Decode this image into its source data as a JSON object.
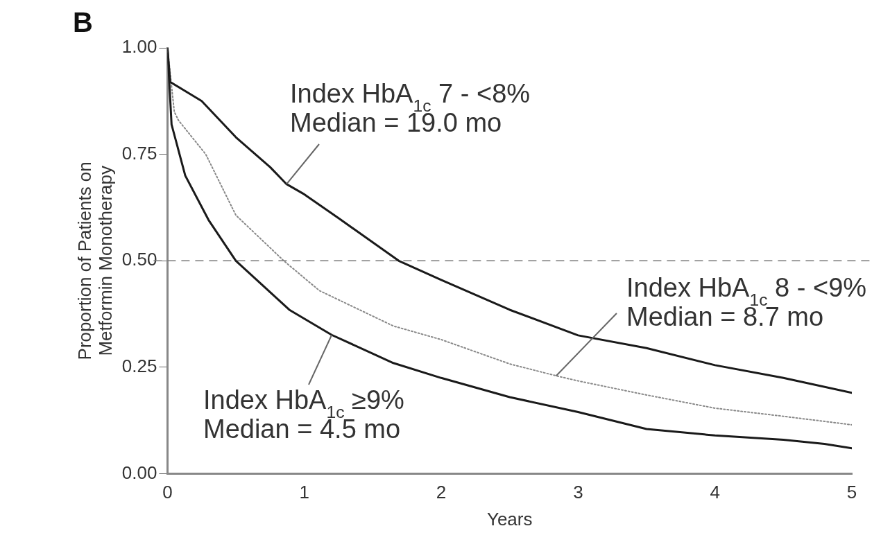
{
  "chart_data": {
    "type": "line",
    "title": "B",
    "xlabel": "Years",
    "ylabel": "Proportion of Patients on\nMetformin Monotherapy",
    "xlim": [
      0,
      5
    ],
    "xticks": [
      0,
      1,
      2,
      3,
      4,
      5
    ],
    "ylim": [
      0,
      1
    ],
    "yticks": [
      {
        "value": 0,
        "label": "0.00"
      },
      {
        "value": 0.25,
        "label": "0.25"
      },
      {
        "value": 0.5,
        "label": "0.50"
      },
      {
        "value": 0.75,
        "label": "0.75"
      },
      {
        "value": 1,
        "label": "1.00"
      }
    ],
    "grid": false,
    "legend": false,
    "marker": "none",
    "series": [
      {
        "color": "#1a1a1a",
        "line_style": "solid",
        "x": [
          0,
          0.02,
          0.25,
          0.5,
          0.75,
          0.87,
          1,
          1.25,
          1.69,
          2,
          2.5,
          3,
          3.5,
          4,
          4.5,
          5
        ],
        "values": [
          1,
          0.92,
          0.875,
          0.79,
          0.72,
          0.68,
          0.656,
          0.6,
          0.5,
          0.455,
          0.385,
          0.325,
          0.295,
          0.255,
          0.225,
          0.19
        ]
      },
      {
        "color": "#888888",
        "line_style": "dotted",
        "x": [
          0,
          0.05,
          0.08,
          0.28,
          0.5,
          0.85,
          1.11,
          1.65,
          2,
          2.5,
          2.84,
          3,
          3.5,
          4,
          4.5,
          5
        ],
        "values": [
          1,
          0.85,
          0.83,
          0.75,
          0.607,
          0.5,
          0.43,
          0.347,
          0.315,
          0.258,
          0.23,
          0.218,
          0.185,
          0.154,
          0.135,
          0.115
        ]
      },
      {
        "color": "#1a1a1a",
        "line_style": "solid",
        "x": [
          0,
          0.03,
          0.13,
          0.3,
          0.5,
          0.89,
          1.2,
          1.65,
          2,
          2.5,
          3,
          3.5,
          4,
          4.5,
          4.8,
          5
        ],
        "values": [
          1,
          0.82,
          0.7,
          0.596,
          0.5,
          0.385,
          0.326,
          0.26,
          0.225,
          0.18,
          0.145,
          0.105,
          0.09,
          0.08,
          0.07,
          0.06
        ]
      }
    ],
    "ref_lines": [
      {
        "axis": "y",
        "value": 0.5,
        "color": "#777777",
        "line_style": "dashed"
      }
    ],
    "annotations": [
      {
        "text": "Index HbA$_{1c}$ 7 - <8%\nMedian = 19.0 mo",
        "x": 0.87,
        "y": 0.68
      },
      {
        "text": "Index HbA$_{1c}$ 8 - <9%\nMedian = 8.7 mo",
        "x": 2.84,
        "y": 0.23
      },
      {
        "text": "Index HbA$_{1c}$ ≥9%\nMedian = 4.5 mo",
        "x": 1.2,
        "y": 0.326
      }
    ]
  }
}
